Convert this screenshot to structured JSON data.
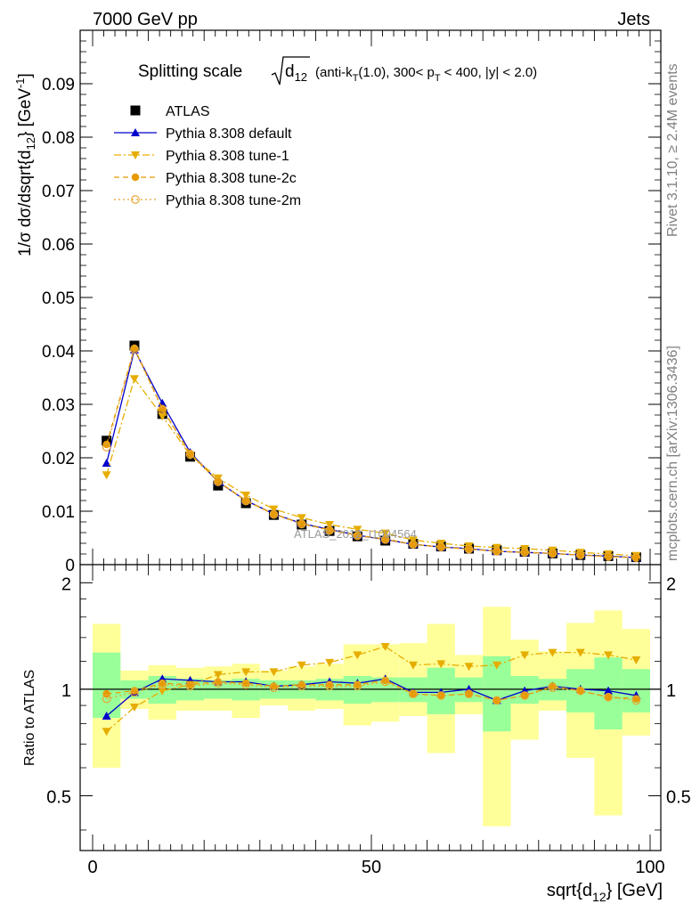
{
  "header": {
    "energy": "7000 GeV pp",
    "process": "Jets"
  },
  "side_labels": {
    "rivet": "Rivet 3.1.10, ≥ 2.4M events",
    "mcplots": "mcplots.cern.ch [arXiv:1306.3436]"
  },
  "chart_data": [
    {
      "type": "scatter",
      "panel": "main",
      "title": "Splitting scale √d₁₂ (anti-k_T(1.0), 300< p_T < 400, |y| < 2.0)",
      "title_parts": {
        "prefix": "Splitting scale",
        "d": "d",
        "d_sub": "12",
        "open": "(anti-k",
        "kt_sub": "T",
        "mid": "(1.0), 300< p",
        "pt_sub": "T",
        "tail": "< 400, |y| < 2.0)"
      },
      "ylabel": "1/σ dσ/dsqrt{d12} [GeV-1]",
      "ylabel_parts": {
        "main": "1/σ dσ/dsqrt{d",
        "sub": "12",
        "close": "} [GeV",
        "sup": "-1",
        "end": "]"
      },
      "ylim": [
        0,
        0.1
      ],
      "xlim": [
        0,
        100
      ],
      "yticks": [
        "0",
        "0.01",
        "0.02",
        "0.03",
        "0.04",
        "0.05",
        "0.06",
        "0.07",
        "0.08",
        "0.09"
      ],
      "watermark": "ATLAS_2012_I1094564",
      "x": [
        2.5,
        7.5,
        12.5,
        17.5,
        22.5,
        27.5,
        32.5,
        37.5,
        42.5,
        47.5,
        52.5,
        57.5,
        62.5,
        67.5,
        72.5,
        77.5,
        82.5,
        87.5,
        92.5,
        97.5
      ],
      "series": [
        {
          "name": "ATLAS",
          "color": "#000000",
          "marker": "square",
          "line": "none",
          "values": [
            0.0232,
            0.041,
            0.0282,
            0.0202,
            0.0148,
            0.0115,
            0.0093,
            0.0075,
            0.0063,
            0.0053,
            0.0045,
            0.0039,
            0.0034,
            0.003,
            0.0027,
            0.0024,
            0.0021,
            0.0018,
            0.0016,
            0.0014
          ]
        },
        {
          "name": "Pythia 8.308 default",
          "color": "#0000cc",
          "marker": "triangle-up",
          "line": "solid",
          "values": [
            0.019,
            0.0402,
            0.0302,
            0.021,
            0.0155,
            0.012,
            0.0095,
            0.0077,
            0.0066,
            0.0055,
            0.0047,
            0.0038,
            0.0033,
            0.003,
            0.0025,
            0.0023,
            0.0021,
            0.0018,
            0.0016,
            0.0013
          ]
        },
        {
          "name": "Pythia 8.308 tune-1",
          "color": "#e6ad00",
          "marker": "triangle-down",
          "line": "dashdot",
          "values": [
            0.0168,
            0.0348,
            0.0278,
            0.0205,
            0.0162,
            0.013,
            0.0104,
            0.0088,
            0.0075,
            0.0066,
            0.0059,
            0.0046,
            0.004,
            0.0035,
            0.0032,
            0.003,
            0.0027,
            0.0023,
            0.002,
            0.0017
          ]
        },
        {
          "name": "Pythia 8.308 tune-2c",
          "color": "#e69a00",
          "marker": "circle",
          "line": "dashed",
          "values": [
            0.0225,
            0.0405,
            0.0292,
            0.0208,
            0.0156,
            0.012,
            0.0095,
            0.0077,
            0.0065,
            0.0055,
            0.0048,
            0.0038,
            0.0033,
            0.0029,
            0.0025,
            0.0023,
            0.0021,
            0.0018,
            0.0015,
            0.0013
          ]
        },
        {
          "name": "Pythia 8.308 tune-2m",
          "color": "#e6a533",
          "marker": "open-circle",
          "line": "dotted",
          "values": [
            0.022,
            0.0403,
            0.029,
            0.0206,
            0.0155,
            0.0119,
            0.0094,
            0.0076,
            0.0064,
            0.0054,
            0.0047,
            0.0038,
            0.0033,
            0.0029,
            0.0025,
            0.0023,
            0.0021,
            0.0018,
            0.0015,
            0.0013
          ]
        }
      ]
    },
    {
      "type": "scatter",
      "panel": "ratio",
      "ylabel": "Ratio to ATLAS",
      "xlabel": "sqrt{d12} [GeV]",
      "xlabel_parts": {
        "main": "sqrt{d",
        "sub": "12",
        "close": "} [GeV]"
      },
      "ylim": [
        0.35,
        2.25
      ],
      "xlim": [
        0,
        100
      ],
      "xticks": [
        "0",
        "50",
        "100"
      ],
      "yticks": [
        "0.5",
        "1",
        "2"
      ],
      "x": [
        2.5,
        7.5,
        12.5,
        17.5,
        22.5,
        27.5,
        32.5,
        37.5,
        42.5,
        47.5,
        52.5,
        57.5,
        62.5,
        67.5,
        72.5,
        77.5,
        82.5,
        87.5,
        92.5,
        97.5
      ],
      "bands": {
        "stat_low": [
          0.83,
          0.94,
          0.91,
          0.93,
          0.94,
          0.93,
          0.94,
          0.94,
          0.93,
          0.91,
          0.92,
          0.92,
          0.85,
          0.92,
          0.76,
          0.91,
          0.93,
          0.86,
          0.77,
          0.86
        ],
        "stat_high": [
          1.27,
          1.06,
          1.09,
          1.07,
          1.06,
          1.07,
          1.06,
          1.06,
          1.07,
          1.09,
          1.08,
          1.08,
          1.15,
          1.08,
          1.24,
          1.09,
          1.07,
          1.14,
          1.23,
          1.14
        ],
        "tot_low": [
          0.6,
          0.88,
          0.82,
          0.87,
          0.87,
          0.83,
          0.9,
          0.87,
          0.88,
          0.79,
          0.81,
          0.84,
          0.66,
          0.85,
          0.41,
          0.72,
          0.87,
          0.64,
          0.44,
          0.74
        ],
        "tot_high": [
          1.53,
          1.13,
          1.17,
          1.15,
          1.16,
          1.18,
          1.13,
          1.16,
          1.18,
          1.34,
          1.34,
          1.35,
          1.53,
          1.25,
          1.71,
          1.38,
          1.28,
          1.54,
          1.67,
          1.48
        ]
      },
      "series": [
        {
          "name": "Pythia 8.308 default",
          "color": "#0000cc",
          "marker": "triangle-up",
          "line": "solid",
          "values": [
            0.84,
            0.98,
            1.07,
            1.06,
            1.05,
            1.05,
            1.02,
            1.03,
            1.05,
            1.04,
            1.07,
            0.98,
            0.98,
            1.0,
            0.93,
            0.99,
            1.02,
            1.0,
            0.99,
            0.96
          ]
        },
        {
          "name": "Pythia 8.308 tune-1",
          "color": "#e6ad00",
          "marker": "triangle-down",
          "line": "dashdot",
          "values": [
            0.76,
            0.89,
            0.99,
            1.03,
            1.1,
            1.12,
            1.12,
            1.17,
            1.19,
            1.25,
            1.32,
            1.17,
            1.18,
            1.16,
            1.17,
            1.25,
            1.27,
            1.27,
            1.25,
            1.21
          ]
        },
        {
          "name": "Pythia 8.308 tune-2c",
          "color": "#e69a00",
          "marker": "circle",
          "line": "dashed",
          "values": [
            0.97,
            0.99,
            1.04,
            1.03,
            1.05,
            1.04,
            1.02,
            1.03,
            1.03,
            1.03,
            1.06,
            0.97,
            0.96,
            0.97,
            0.93,
            0.96,
            1.02,
            0.99,
            0.95,
            0.94
          ]
        },
        {
          "name": "Pythia 8.308 tune-2m",
          "color": "#e6a533",
          "marker": "open-circle",
          "line": "dotted",
          "values": [
            0.94,
            0.98,
            1.03,
            1.02,
            1.04,
            1.03,
            1.01,
            1.02,
            1.02,
            1.02,
            1.05,
            0.97,
            0.96,
            0.97,
            0.93,
            0.96,
            1.01,
            0.99,
            0.95,
            0.93
          ]
        }
      ]
    }
  ]
}
